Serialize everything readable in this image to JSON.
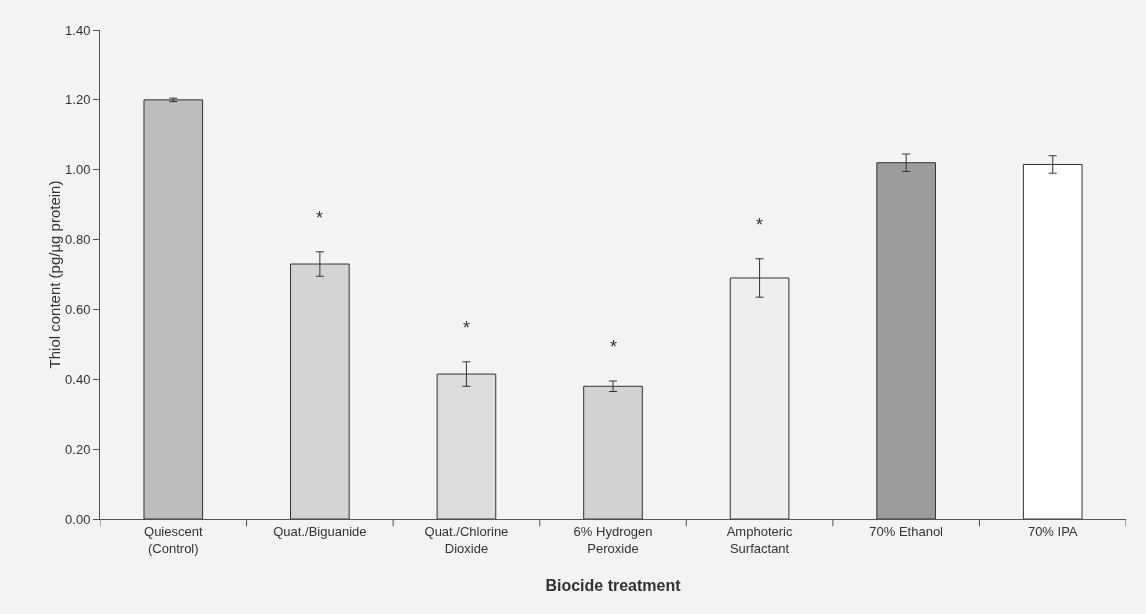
{
  "chart_data": {
    "type": "bar",
    "xlabel": "Biocide treatment",
    "ylabel": "Thiol content (pg/µg protein)",
    "categories": [
      "Quiescent\n(Control)",
      "Quat./Biguanide",
      "Quat./Chlorine\nDioxide",
      "6% Hydrogen\nPeroxide",
      "Amphoteric\nSurfactant",
      "70% Ethanol",
      "70% IPA"
    ],
    "values": [
      1.2,
      0.73,
      0.415,
      0.38,
      0.69,
      1.02,
      1.015
    ],
    "errors": [
      0.005,
      0.035,
      0.035,
      0.015,
      0.055,
      0.025,
      0.025
    ],
    "colors": [
      "#bdbdbd",
      "#d4d4d4",
      "#dcdcdc",
      "#d2d2d2",
      "#eeeeee",
      "#9c9c9c",
      "#ffffff"
    ],
    "ylim": [
      0,
      1.4
    ],
    "yticks": [
      {
        "value": 0,
        "label": "0.00"
      },
      {
        "value": 0.2,
        "label": "0.20"
      },
      {
        "value": 0.4,
        "label": "0.40"
      },
      {
        "value": 0.6,
        "label": "0.60"
      },
      {
        "value": 0.8,
        "label": "0.80"
      },
      {
        "value": 1.0,
        "label": "1.00"
      },
      {
        "value": 1.2,
        "label": "1.20"
      },
      {
        "value": 1.4,
        "label": "1.40"
      }
    ],
    "grid": false,
    "annotations": [
      {
        "text": "*",
        "x": "Quat./Biguanide",
        "y": 0.765
      },
      {
        "text": "*",
        "x": "Quat./Chlorine\nDioxide",
        "y": 0.45
      },
      {
        "text": "*",
        "x": "6% Hydrogen\nPeroxide",
        "y": 0.395
      },
      {
        "text": "*",
        "x": "Amphoteric\nSurfactant",
        "y": 0.745
      }
    ]
  }
}
